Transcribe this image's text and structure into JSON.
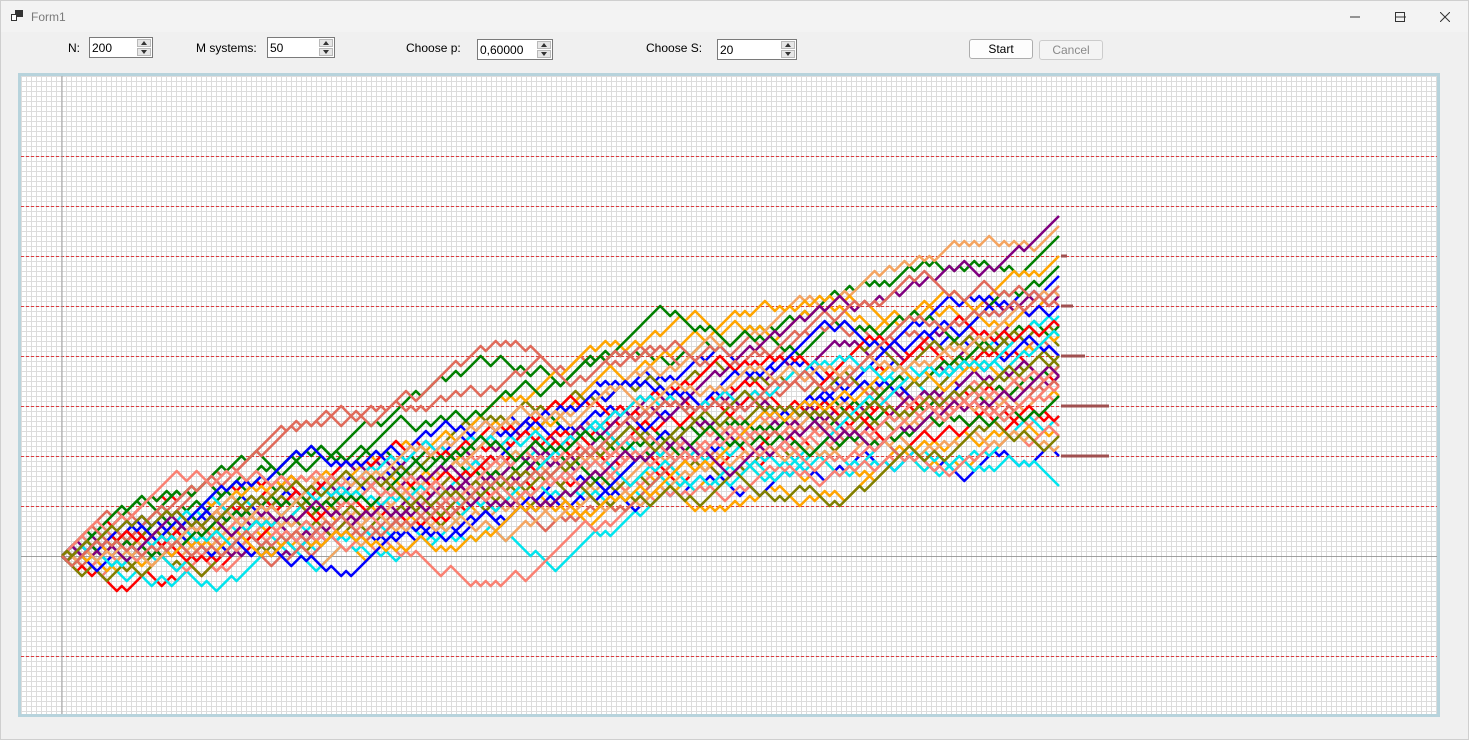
{
  "window": {
    "title": "Form1",
    "icons": {
      "app": "app-icon",
      "minimize": "minimize-icon",
      "maximize": "maximize-icon",
      "close": "close-icon"
    }
  },
  "controls": {
    "n": {
      "label": "N:",
      "value": "200"
    },
    "m": {
      "label": "M systems:",
      "value": "50"
    },
    "p": {
      "label": "Choose p:",
      "value": "0,60000"
    },
    "s": {
      "label": "Choose S:",
      "value": "20"
    },
    "start_label": "Start",
    "cancel_label": "Cancel"
  },
  "colors": {
    "frame": "#b7d3dc",
    "grid_minor": "#dcdcdc",
    "grid_major_dashed": "#e0393c",
    "axis": "#a0a0a0",
    "marker": "#a05050",
    "series_palette": [
      "#ff0000",
      "#ffa500",
      "#0000ff",
      "#00e5ee",
      "#008000",
      "#800080",
      "#fa8072",
      "#f4a460",
      "#808000",
      "#e06a5a"
    ]
  },
  "chart_data": {
    "type": "line",
    "x_range": [
      0,
      200
    ],
    "y_range": [
      -20,
      80
    ],
    "grid": true,
    "series_count": 50,
    "steps": 200,
    "p": 0.6,
    "dashed_levels": [
      -20,
      0,
      10,
      20,
      30,
      40,
      50,
      60,
      70,
      80
    ],
    "final_distribution_bars": [
      {
        "y": 20,
        "count": 8
      },
      {
        "y": 30,
        "count": 8
      },
      {
        "y": 40,
        "count": 4
      },
      {
        "y": 50,
        "count": 2
      },
      {
        "y": 60,
        "count": 1
      }
    ]
  }
}
